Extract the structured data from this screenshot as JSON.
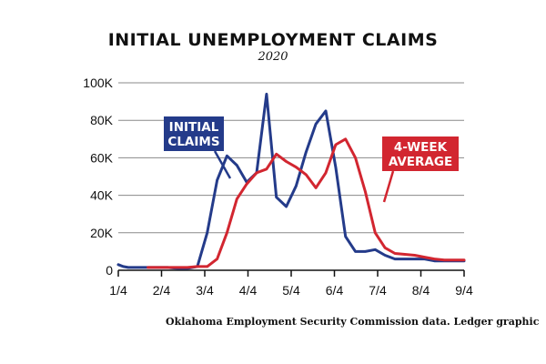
{
  "title": "INITIAL UNEMPLOYMENT CLAIMS",
  "subtitle": "2020",
  "source": "Oklahoma Employment Security Commission data. Ledger graphic",
  "chart_data": {
    "type": "line",
    "x_ticks": [
      "1/4",
      "2/4",
      "3/4",
      "4/4",
      "5/4",
      "6/4",
      "7/4",
      "8/4",
      "9/4"
    ],
    "y_ticks": [
      "0",
      "20K",
      "40K",
      "60K",
      "80K",
      "100K"
    ],
    "ylim": [
      0,
      100000
    ],
    "xlim": [
      0,
      35
    ],
    "grid": true,
    "series": [
      {
        "name": "INITIAL CLAIMS",
        "label_lines": [
          "INITIAL",
          "CLAIMS"
        ],
        "color": "#243b8a",
        "x": [
          0,
          0.5,
          1,
          2,
          3,
          4,
          5,
          6,
          7,
          8,
          9,
          10,
          11,
          12,
          13,
          14,
          15,
          16,
          17,
          18,
          19,
          20,
          21,
          22,
          23,
          24,
          25,
          26,
          27,
          28,
          29,
          30,
          31,
          32,
          33,
          34,
          35
        ],
        "y": [
          3000,
          2000,
          1500,
          1500,
          1500,
          1500,
          1500,
          1000,
          1000,
          2000,
          20000,
          48000,
          61000,
          56000,
          47000,
          52000,
          94000,
          39000,
          34000,
          45000,
          63000,
          78000,
          85000,
          55000,
          18000,
          10000,
          10000,
          11000,
          8000,
          6000,
          6000,
          6000,
          6000,
          5000,
          5000,
          5000,
          5000
        ]
      },
      {
        "name": "4-WEEK AVERAGE",
        "label_lines": [
          "4-WEEK",
          "AVERAGE"
        ],
        "color": "#d22630",
        "x": [
          3,
          4,
          5,
          6,
          7,
          8,
          9,
          10,
          11,
          12,
          13,
          14,
          15,
          16,
          17,
          18,
          19,
          20,
          21,
          22,
          23,
          24,
          25,
          26,
          27,
          28,
          29,
          30,
          31,
          32,
          33,
          34,
          35
        ],
        "y": [
          1500,
          1500,
          1500,
          1500,
          1500,
          2000,
          2000,
          6000,
          20000,
          38000,
          46000,
          52000,
          54000,
          62000,
          58000,
          55000,
          51000,
          44000,
          52000,
          67000,
          70000,
          60000,
          42000,
          20000,
          12000,
          9000,
          8500,
          8000,
          7000,
          6000,
          5500,
          5500,
          5500
        ]
      }
    ]
  }
}
